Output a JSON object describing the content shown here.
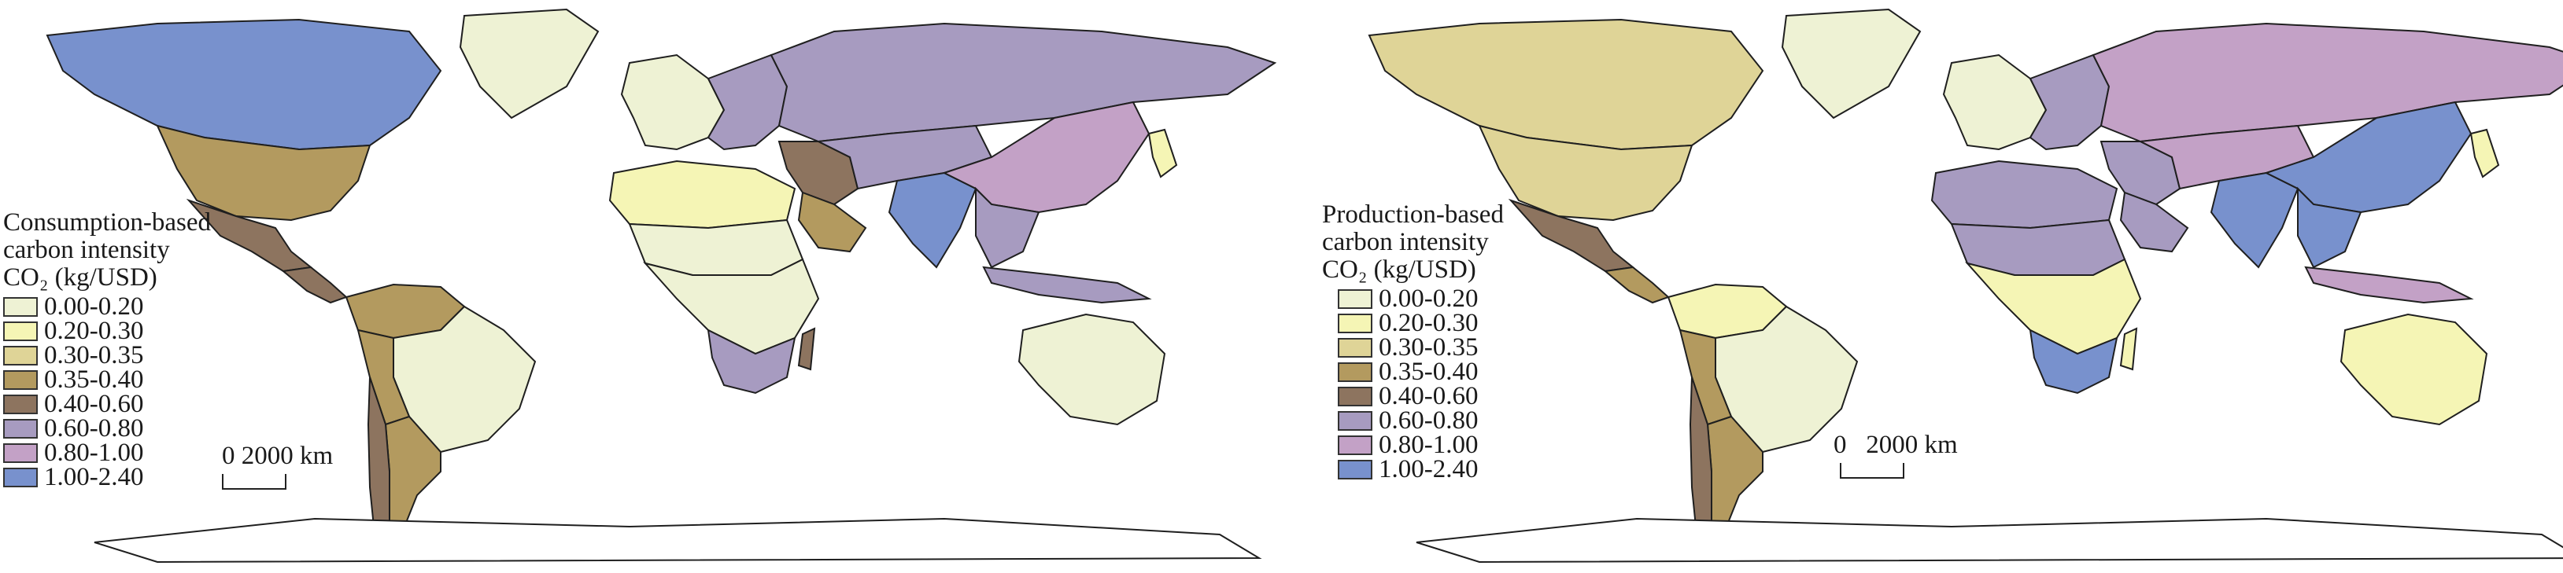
{
  "maps": [
    {
      "id": "consumption",
      "title_lines": [
        "Consumption-based",
        "carbon intensity",
        "CO₂ (kg/USD)"
      ],
      "scale_label": "0 2000 km",
      "countries": {
        "north_america": 7,
        "greenland": 0,
        "usa": 3,
        "mexico": 4,
        "central_am": 4,
        "south_am_north": 3,
        "brazil": 0,
        "andes": 3,
        "argentina": 3,
        "chile": 4,
        "europe_west": 0,
        "europe_east": 5,
        "russia": 5,
        "africa_north": 1,
        "sahara": 0,
        "africa_central": 0,
        "africa_south": 5,
        "madagascar": 4,
        "middle_east": 4,
        "arabia": 3,
        "central_asia": 5,
        "india": 7,
        "china": 6,
        "se_asia": 5,
        "indonesia": 5,
        "australia": 0,
        "japan": 1
      }
    },
    {
      "id": "production",
      "title_lines": [
        "Production-based",
        "carbon intensity",
        "CO₂ (kg/USD)"
      ],
      "scale_label": "0   2000 km",
      "countries": {
        "north_america": 2,
        "greenland": 0,
        "usa": 2,
        "mexico": 4,
        "central_am": 3,
        "south_am_north": 1,
        "brazil": 0,
        "andes": 3,
        "argentina": 3,
        "chile": 4,
        "europe_west": 0,
        "europe_east": 5,
        "russia": 6,
        "africa_north": 5,
        "sahara": 5,
        "africa_central": 1,
        "africa_south": 7,
        "madagascar": 1,
        "middle_east": 5,
        "arabia": 5,
        "central_asia": 6,
        "india": 7,
        "china": 7,
        "se_asia": 7,
        "indonesia": 6,
        "australia": 1,
        "japan": 1
      }
    }
  ],
  "legend_classes": [
    {
      "label": "0.00-0.20",
      "color": "#eef2d4"
    },
    {
      "label": "0.20-0.30",
      "color": "#f5f5b5"
    },
    {
      "label": "0.30-0.35",
      "color": "#dfd497"
    },
    {
      "label": "0.35-0.40",
      "color": "#b39a5f"
    },
    {
      "label": "0.40-0.60",
      "color": "#8d745f"
    },
    {
      "label": "0.60-0.80",
      "color": "#a79bc0"
    },
    {
      "label": "0.80-1.00",
      "color": "#c3a1c6"
    },
    {
      "label": "1.00-2.40",
      "color": "#7891cd"
    }
  ],
  "ocean_color": "#ffffff",
  "antarctica_color": "#ffffff"
}
